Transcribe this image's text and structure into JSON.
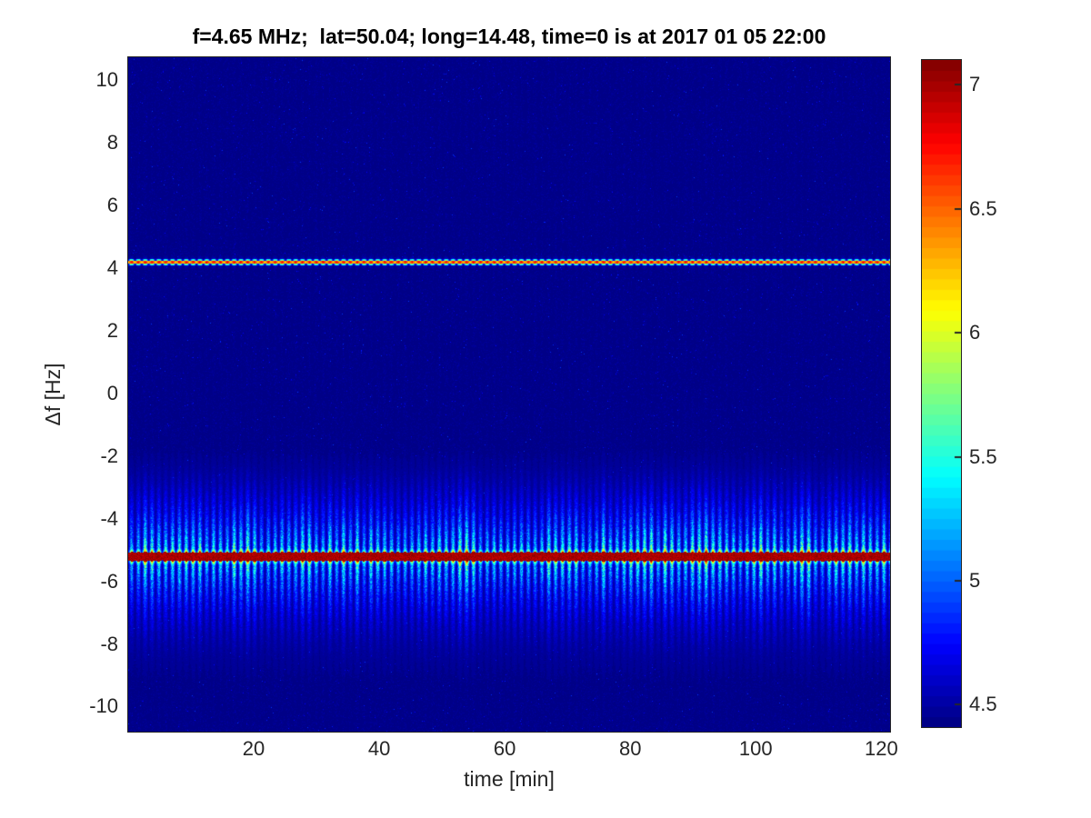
{
  "window": {
    "background": "#ffffff",
    "axis_color": "#262626",
    "title_color": "#000000"
  },
  "chart_data": {
    "type": "heatmap",
    "title": "f=4.65 MHz;  lat=50.04; long=14.48, time=0 is at 2017 01 05 22:00",
    "xlabel": "time [min]",
    "ylabel": "Δf [Hz]",
    "x_range": [
      0,
      121.4
    ],
    "x_ticks": [
      20,
      40,
      60,
      80,
      100,
      120
    ],
    "y_range": [
      -10.8,
      10.73
    ],
    "y_ticks": [
      10,
      8,
      6,
      4,
      2,
      0,
      -2,
      -4,
      -6,
      -8,
      -10
    ],
    "grid": false,
    "colormap": "jet",
    "colorbar": {
      "position": "right",
      "value_range": [
        4.41,
        7.1
      ],
      "ticks": [
        7,
        6.5,
        6,
        5.5,
        5,
        4.5
      ],
      "levels": 64
    },
    "background_value": 4.43,
    "features": [
      {
        "name": "narrowband-line",
        "delta_f_hz": 4.2,
        "width_hz": 0.1,
        "peak_value": 6.8,
        "tick_period_min": 1.09,
        "description": "thin orange-red horizontal line with small periodic vertical tick marks and faint blue glow"
      },
      {
        "name": "carrier-band",
        "delta_f_hz": -5.2,
        "core_half_width_hz": 0.14,
        "peak_value": 7.1,
        "sideband_span_hz": [
          -8.9,
          -2.3
        ],
        "stripe_period_min": 1.09,
        "description": "saturated dark-red band with dense periodic vertical sideband stripes fading yellow-green to cyan to blue away from the band"
      }
    ]
  }
}
